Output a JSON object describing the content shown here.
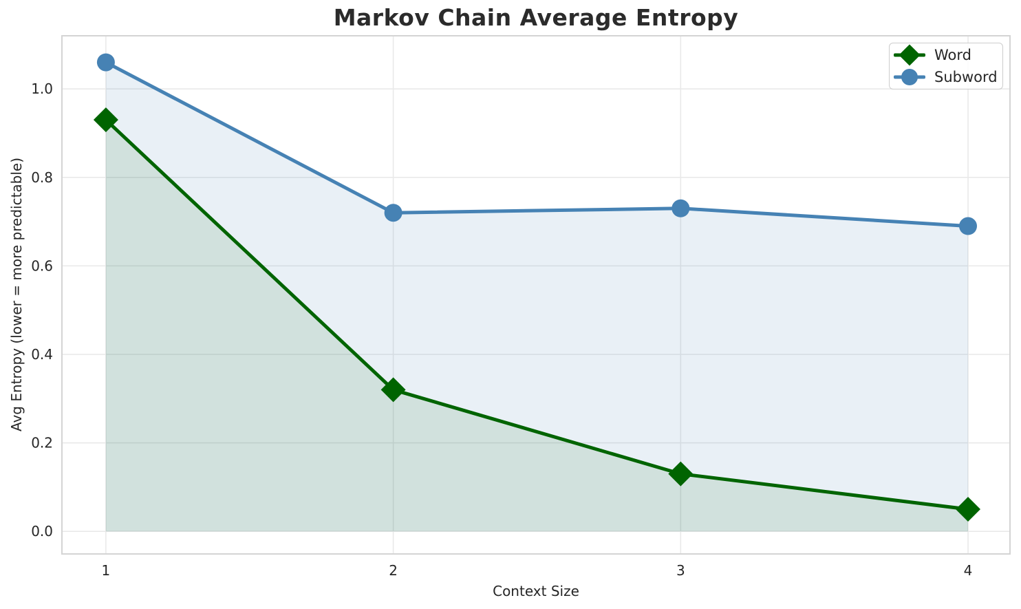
{
  "title": "Markov Chain Average Entropy",
  "chart_data": {
    "type": "line",
    "x": [
      1,
      2,
      3,
      4
    ],
    "series": [
      {
        "name": "Word",
        "values": [
          0.93,
          0.32,
          0.13,
          0.05
        ],
        "color": "#006400",
        "marker": "diamond",
        "fill_alpha": 0.1
      },
      {
        "name": "Subword",
        "values": [
          1.06,
          0.72,
          0.73,
          0.69
        ],
        "color": "#4682b4",
        "marker": "circle",
        "fill_alpha": 0.12
      }
    ],
    "xlabel": "Context Size",
    "ylabel": "Avg Entropy (lower = more predictable)",
    "x_ticks": [
      "1",
      "2",
      "3",
      "4"
    ],
    "y_ticks": [
      0.0,
      0.2,
      0.4,
      0.6,
      0.8,
      1.0
    ],
    "xlim": [
      0.847,
      4.146
    ],
    "ylim": [
      -0.051,
      1.12
    ],
    "grid": true,
    "area_fill_to_zero": true,
    "legend_position": "upper right",
    "colors": {
      "grid": "#e9e9e9",
      "spine": "#d4d4d4",
      "text": "#262626",
      "background": "#ffffff"
    }
  }
}
